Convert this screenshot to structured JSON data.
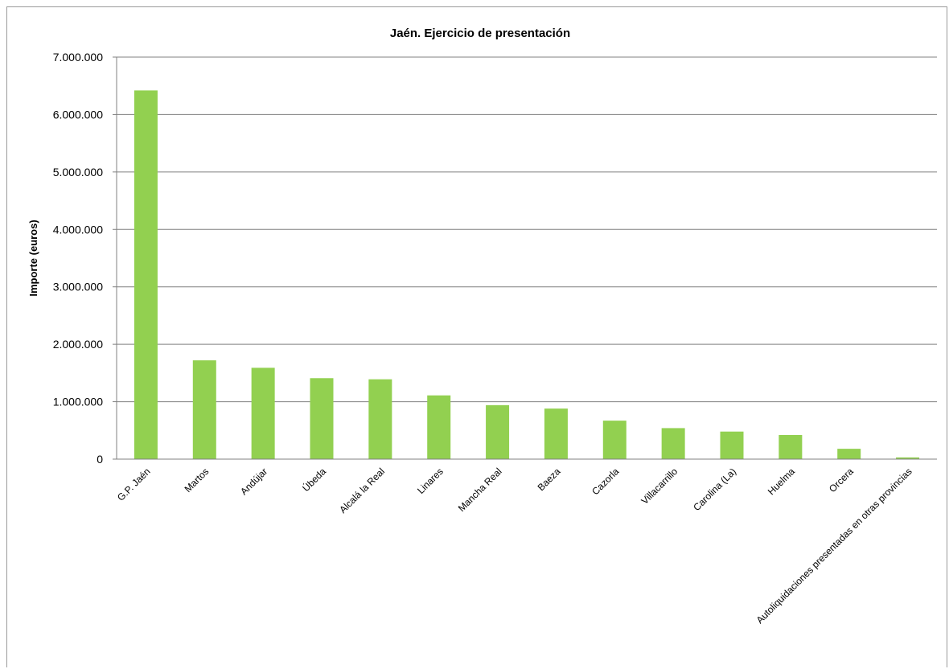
{
  "chart_data": {
    "type": "bar",
    "title": "Jaén. Ejercicio de presentación",
    "xlabel": "",
    "ylabel": "Importe (euros)",
    "ylim": [
      0,
      7000000
    ],
    "yticks": [
      0,
      1000000,
      2000000,
      3000000,
      4000000,
      5000000,
      6000000,
      7000000
    ],
    "ytick_labels": [
      "0",
      "1.000.000",
      "2.000.000",
      "3.000.000",
      "4.000.000",
      "5.000.000",
      "6.000.000",
      "7.000.000"
    ],
    "grid": true,
    "legend": "none",
    "bar_color": "#92d050",
    "categories": [
      "G.P. Jaén",
      "Martos",
      "Andújar",
      "Úbeda",
      "Alcalá la Real",
      "Linares",
      "Mancha Real",
      "Baeza",
      "Cazorla",
      "Villacarrillo",
      "Carolina (La)",
      "Huelma",
      "Orcera",
      "Autoliquidaciones presentadas en otras provincias"
    ],
    "values": [
      6420000,
      1720000,
      1590000,
      1410000,
      1390000,
      1110000,
      940000,
      880000,
      670000,
      540000,
      480000,
      420000,
      180000,
      30000
    ]
  }
}
